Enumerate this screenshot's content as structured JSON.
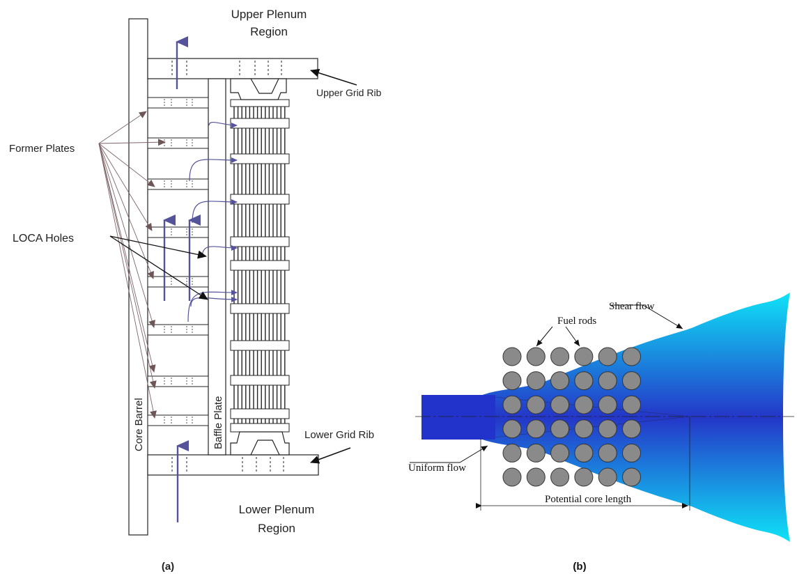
{
  "panel_a": {
    "caption": "(a)",
    "upper_plenum": [
      "Upper Plenum",
      "Region"
    ],
    "lower_plenum": [
      "Lower Plenum",
      "Region"
    ],
    "upper_grid_rib": "Upper Grid Rib",
    "lower_grid_rib": "Lower Grid Rib",
    "former_plates": "Former Plates",
    "loca_holes": "LOCA Holes",
    "core_barrel": "Core Barrel",
    "baffle_plate": "Baffle Plate",
    "colors": {
      "flow_arrow": "#55539a",
      "pointer": "#7d6468",
      "outline": "#222222"
    }
  },
  "panel_b": {
    "caption": "(b)",
    "shear_flow": "Shear flow",
    "fuel_rods": "Fuel rods",
    "uniform_flow": "Uniform flow",
    "potential_core_length": "Potential core length",
    "rod_grid": {
      "rows": 6,
      "cols": 6
    },
    "colors": {
      "jet_core": "#2233cc",
      "jet_edge": "#0fe3f7",
      "rod_fill": "#8a8a8a"
    }
  }
}
